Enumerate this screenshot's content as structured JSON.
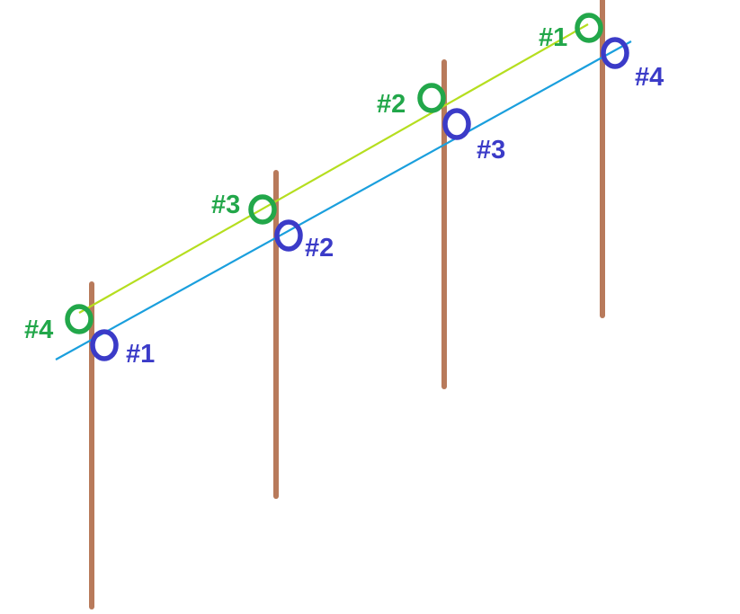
{
  "colors": {
    "post": "#b87a5b",
    "upper_wire": "#b5de1f",
    "lower_wire": "#1a9fdd",
    "upper_ring": "#22a74a",
    "lower_ring": "#3b3bc8",
    "upper_label": "#22a74a",
    "lower_label": "#3b3bc8",
    "background": "#ffffff"
  },
  "posts": [
    {
      "name": "post-1"
    },
    {
      "name": "post-2"
    },
    {
      "name": "post-3"
    },
    {
      "name": "post-4"
    }
  ],
  "upper_rings": [
    {
      "label": "#4"
    },
    {
      "label": "#3"
    },
    {
      "label": "#2"
    },
    {
      "label": "#1"
    }
  ],
  "lower_rings": [
    {
      "label": "#1"
    },
    {
      "label": "#2"
    },
    {
      "label": "#3"
    },
    {
      "label": "#4"
    }
  ]
}
